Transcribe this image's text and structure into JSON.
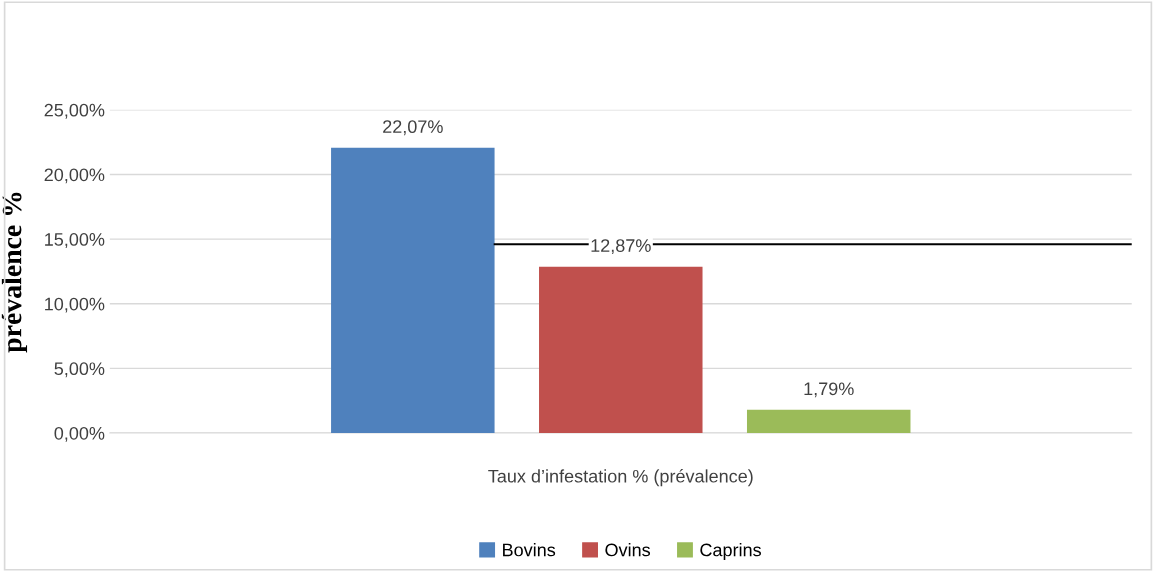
{
  "chart_data": {
    "type": "bar",
    "ylabel": "prévalence %",
    "categories": [
      "Taux d’infestation % (prévalence)"
    ],
    "series": [
      {
        "name": "Bovins",
        "color": "#4f81bd",
        "values": [
          22.07
        ],
        "value_labels": [
          "22,07%"
        ]
      },
      {
        "name": "Ovins",
        "color": "#c0504d",
        "values": [
          12.87
        ],
        "value_labels": [
          "12,87%"
        ]
      },
      {
        "name": "Caprins",
        "color": "#9bbb59",
        "values": [
          1.79
        ],
        "value_labels": [
          "1,79%"
        ]
      }
    ],
    "ylim": [
      0,
      25
    ],
    "yticks": [
      {
        "value": 0,
        "label": "0,00%"
      },
      {
        "value": 5,
        "label": "5,00%"
      },
      {
        "value": 10,
        "label": "10,00%"
      },
      {
        "value": 15,
        "label": "15,00%"
      },
      {
        "value": 20,
        "label": "20,00%"
      },
      {
        "value": 25,
        "label": "25,00%"
      }
    ],
    "ref_lines": [
      {
        "axis": "y",
        "value": 14.6,
        "color": "#000000",
        "line_style": "solid"
      }
    ],
    "grid": "y",
    "legend": "bottom"
  }
}
